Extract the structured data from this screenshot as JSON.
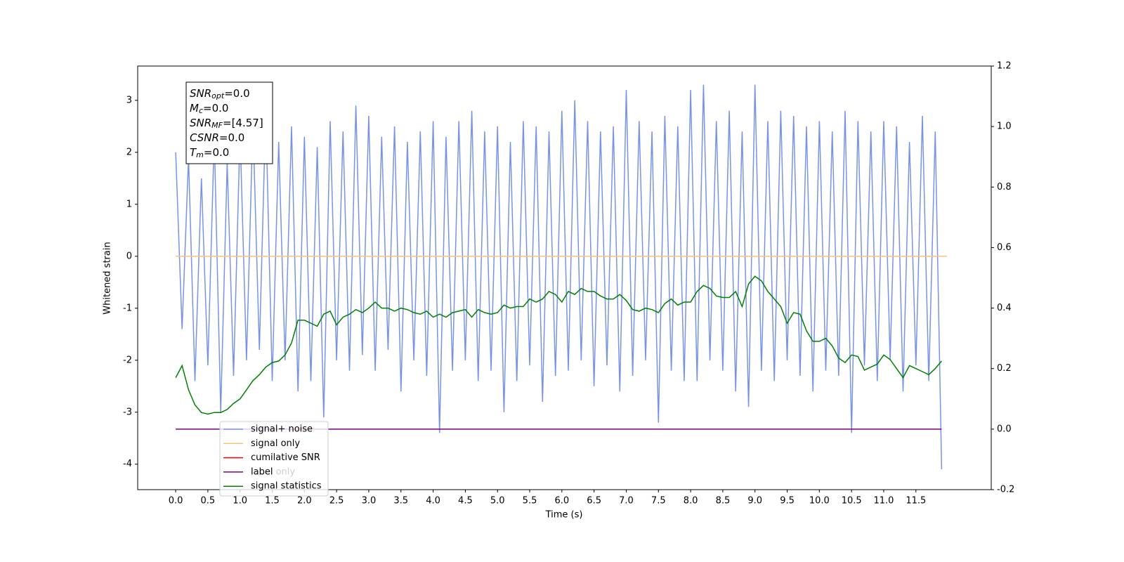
{
  "chart_data": {
    "type": "line",
    "xlabel": "Time (s)",
    "ylabel": "Whitened strain",
    "xlim": [
      -0.59,
      12.67
    ],
    "ylim": [
      -4.49,
      3.66
    ],
    "y2lim": [
      -0.2,
      1.2
    ],
    "xticks": [
      {
        "value": 0,
        "label": "0.0"
      },
      0.5,
      {
        "value": 1,
        "label": "1.0"
      },
      1.5,
      {
        "value": 2,
        "label": "2.0"
      },
      2.5,
      {
        "value": 3,
        "label": "3.0"
      },
      3.5,
      {
        "value": 4,
        "label": "4.0"
      },
      4.5,
      {
        "value": 5,
        "label": "5.0"
      },
      5.5,
      {
        "value": 6,
        "label": "6.0"
      },
      6.5,
      {
        "value": 7,
        "label": "7.0"
      },
      7.5,
      {
        "value": 8,
        "label": "8.0"
      },
      8.5,
      {
        "value": 9,
        "label": "9.0"
      },
      9.5,
      {
        "value": 10,
        "label": "10.0"
      },
      10.5,
      {
        "value": 11,
        "label": "11.0"
      },
      11.5
    ],
    "yticks": [
      -4,
      -3,
      -2,
      -1,
      0,
      1,
      2,
      3
    ],
    "y2ticks": [
      -0.2,
      {
        "value": 0,
        "label": "0.0"
      },
      0.2,
      0.4,
      0.6,
      0.8,
      {
        "value": 1,
        "label": "1.0"
      },
      1.2
    ],
    "x": [
      0,
      0.1,
      0.2,
      0.3,
      0.4,
      0.5,
      0.6,
      0.7,
      0.8,
      0.9,
      1,
      1.1,
      1.2,
      1.3,
      1.4,
      1.5,
      1.6,
      1.7,
      1.8,
      1.9,
      2,
      2.1,
      2.2,
      2.3,
      2.4,
      2.5,
      2.6,
      2.7,
      2.8,
      2.9,
      3,
      3.1,
      3.2,
      3.3,
      3.4,
      3.5,
      3.6,
      3.7,
      3.8,
      3.9,
      4,
      4.1,
      4.2,
      4.3,
      4.4,
      4.5,
      4.6,
      4.7,
      4.8,
      4.9,
      5,
      5.1,
      5.2,
      5.3,
      5.4,
      5.5,
      5.6,
      5.7,
      5.8,
      5.9,
      6,
      6.1,
      6.2,
      6.3,
      6.4,
      6.5,
      6.6,
      6.7,
      6.8,
      6.9,
      7,
      7.1,
      7.2,
      7.3,
      7.4,
      7.5,
      7.6,
      7.7,
      7.8,
      7.9,
      8,
      8.1,
      8.2,
      8.3,
      8.4,
      8.5,
      8.6,
      8.7,
      8.8,
      8.9,
      9,
      9.1,
      9.2,
      9.3,
      9.4,
      9.5,
      9.6,
      9.7,
      9.8,
      9.9,
      10,
      10.1,
      10.2,
      10.3,
      10.4,
      10.5,
      10.6,
      10.7,
      10.8,
      10.9,
      11,
      11.1,
      11.2,
      11.3,
      11.4,
      11.5,
      11.6,
      11.7,
      11.8,
      11.9
    ],
    "series": [
      {
        "name": "signal+ noise",
        "color": "#7893e6",
        "axis": "y",
        "values": [
          2.0,
          -1.4,
          1.9,
          -2.4,
          1.5,
          -2.1,
          2.3,
          -3.0,
          1.8,
          -2.3,
          2.4,
          -2.0,
          2.6,
          -1.8,
          2.8,
          -2.4,
          2.2,
          -2.0,
          2.5,
          -2.6,
          2.3,
          -2.4,
          2.1,
          -3.1,
          2.6,
          -2.0,
          2.4,
          -2.2,
          2.9,
          -1.9,
          2.7,
          -2.2,
          2.3,
          -1.8,
          2.5,
          -2.6,
          2.2,
          -2.0,
          2.4,
          -2.3,
          2.6,
          -3.4,
          2.3,
          -2.2,
          2.6,
          -2.0,
          2.8,
          -2.4,
          2.4,
          -2.2,
          2.5,
          -3.0,
          2.2,
          -2.4,
          2.6,
          -2.1,
          2.5,
          -2.8,
          2.4,
          -2.3,
          2.8,
          -2.2,
          3.0,
          -2.0,
          2.6,
          -2.5,
          2.4,
          -2.1,
          2.5,
          -2.6,
          3.2,
          -2.3,
          2.6,
          -2.0,
          2.4,
          -3.2,
          2.7,
          -2.2,
          2.5,
          -2.4,
          3.2,
          -2.4,
          3.3,
          -2.0,
          2.6,
          -2.2,
          2.8,
          -2.6,
          2.4,
          -2.9,
          3.3,
          -2.2,
          2.6,
          -2.4,
          2.8,
          -2.0,
          2.7,
          -2.3,
          2.5,
          -2.6,
          2.6,
          -2.2,
          2.4,
          -2.3,
          2.8,
          -3.4,
          2.6,
          -2.1,
          2.4,
          -2.4,
          2.6,
          -2.0,
          2.5,
          -2.6,
          2.2,
          -2.1,
          2.7,
          -2.4,
          2.4,
          -4.1
        ]
      },
      {
        "name": "signal only",
        "color": "#f7c27c",
        "axis": "y",
        "x": [
          0,
          11.98
        ],
        "values": [
          0,
          0
        ]
      },
      {
        "name": "cumilative SNR",
        "color": "#ff0000",
        "axis": "y2",
        "x": [],
        "values": []
      },
      {
        "name": "label",
        "color": "#800080",
        "axis": "y2",
        "x": [
          0,
          11.9
        ],
        "values": [
          0,
          0
        ]
      },
      {
        "name": "signal statistics",
        "color": "#008000",
        "axis": "y2",
        "values": [
          0.17,
          0.21,
          0.13,
          0.08,
          0.055,
          0.05,
          0.055,
          0.055,
          0.065,
          0.085,
          0.1,
          0.13,
          0.16,
          0.18,
          0.205,
          0.22,
          0.225,
          0.245,
          0.285,
          0.36,
          0.36,
          0.35,
          0.34,
          0.38,
          0.39,
          0.345,
          0.37,
          0.38,
          0.395,
          0.385,
          0.4,
          0.42,
          0.4,
          0.4,
          0.39,
          0.4,
          0.395,
          0.385,
          0.38,
          0.39,
          0.37,
          0.38,
          0.37,
          0.385,
          0.39,
          0.395,
          0.37,
          0.395,
          0.385,
          0.38,
          0.385,
          0.41,
          0.4,
          0.405,
          0.405,
          0.43,
          0.42,
          0.43,
          0.455,
          0.445,
          0.42,
          0.455,
          0.445,
          0.465,
          0.455,
          0.455,
          0.44,
          0.43,
          0.43,
          0.445,
          0.425,
          0.395,
          0.39,
          0.4,
          0.395,
          0.385,
          0.415,
          0.43,
          0.41,
          0.42,
          0.42,
          0.455,
          0.475,
          0.465,
          0.44,
          0.435,
          0.435,
          0.455,
          0.405,
          0.48,
          0.505,
          0.49,
          0.455,
          0.43,
          0.405,
          0.35,
          0.385,
          0.38,
          0.325,
          0.29,
          0.29,
          0.3,
          0.275,
          0.235,
          0.22,
          0.245,
          0.24,
          0.195,
          0.205,
          0.215,
          0.245,
          0.23,
          0.2,
          0.17,
          0.21,
          0.2,
          0.19,
          0.18,
          0.2,
          0.225
        ]
      }
    ],
    "annotation": "label only",
    "stats_box": [
      {
        "main": "SNR",
        "sub": "opt",
        "rest": "=0.0"
      },
      {
        "main": "M",
        "sub": "c",
        "rest": "=0.0"
      },
      {
        "main": "SNR",
        "sub": "MF",
        "rest": "=[4.57]"
      },
      {
        "main": "CSNR",
        "rest": "=0.0"
      },
      {
        "main": "T",
        "sub": "m",
        "rest": "=0.0"
      }
    ],
    "legend": "lower left"
  }
}
